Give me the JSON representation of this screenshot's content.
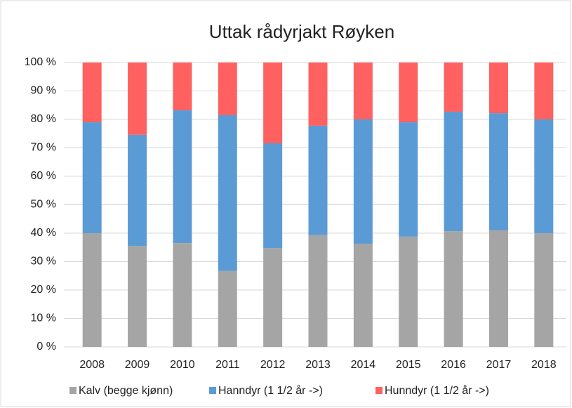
{
  "chart_data": {
    "type": "stacked_bar",
    "title": "Uttak rådyrjakt Røyken",
    "categories": [
      "2008",
      "2009",
      "2010",
      "2011",
      "2012",
      "2013",
      "2014",
      "2015",
      "2016",
      "2017",
      "2018"
    ],
    "series": [
      {
        "name": "Kalv (begge kjønn)",
        "color": "#a5a5a5",
        "values": [
          40,
          35.5,
          36.5,
          26.7,
          34.8,
          39.3,
          36.3,
          38.8,
          40.7,
          41,
          40
        ]
      },
      {
        "name": "Hanndyr (1 1/2 år ->)",
        "color": "#5b9bd5",
        "values": [
          39,
          39.1,
          46.7,
          54.8,
          36.8,
          38.5,
          43.7,
          40.2,
          42,
          41.2,
          40
        ]
      },
      {
        "name": "Hunndyr (1 1/2 år ->)",
        "color": "#ff6161",
        "values": [
          21,
          25.4,
          16.8,
          18.5,
          28.4,
          22.2,
          20,
          21,
          17.3,
          17.8,
          20
        ]
      }
    ],
    "ylim": [
      0,
      100
    ],
    "yticks": [
      {
        "value": 0,
        "label": "0 %"
      },
      {
        "value": 10,
        "label": "10 %"
      },
      {
        "value": 20,
        "label": "20 %"
      },
      {
        "value": 30,
        "label": "30 %"
      },
      {
        "value": 40,
        "label": "40 %"
      },
      {
        "value": 50,
        "label": "50 %"
      },
      {
        "value": 60,
        "label": "60 %"
      },
      {
        "value": 70,
        "label": "70 %"
      },
      {
        "value": 80,
        "label": "80 %"
      },
      {
        "value": 90,
        "label": "90 %"
      },
      {
        "value": 100,
        "label": "100 %"
      }
    ],
    "grid": true,
    "legend": "bottom"
  }
}
